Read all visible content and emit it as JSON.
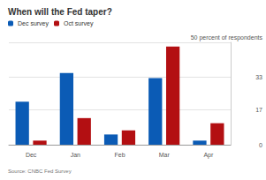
{
  "chart_data": {
    "type": "bar",
    "title": "When will the Fed taper?",
    "source": "Source: CNBC Fed Survey",
    "categories": [
      "Dec",
      "Jan",
      "Feb",
      "Mar",
      "Apr"
    ],
    "series": [
      {
        "name": "Dec survey",
        "color": "#0b5bb5",
        "values": [
          21,
          35,
          5,
          32.5,
          2
        ]
      },
      {
        "name": "Oct survey",
        "color": "#b30f12",
        "values": [
          2,
          13,
          7,
          48,
          10.5
        ]
      }
    ],
    "ylim": [
      0,
      50
    ],
    "yticks": [
      0,
      17,
      33,
      {
        "value": 50,
        "label": "50 percent of respondents"
      }
    ],
    "grid": true,
    "legend": "top-left"
  }
}
